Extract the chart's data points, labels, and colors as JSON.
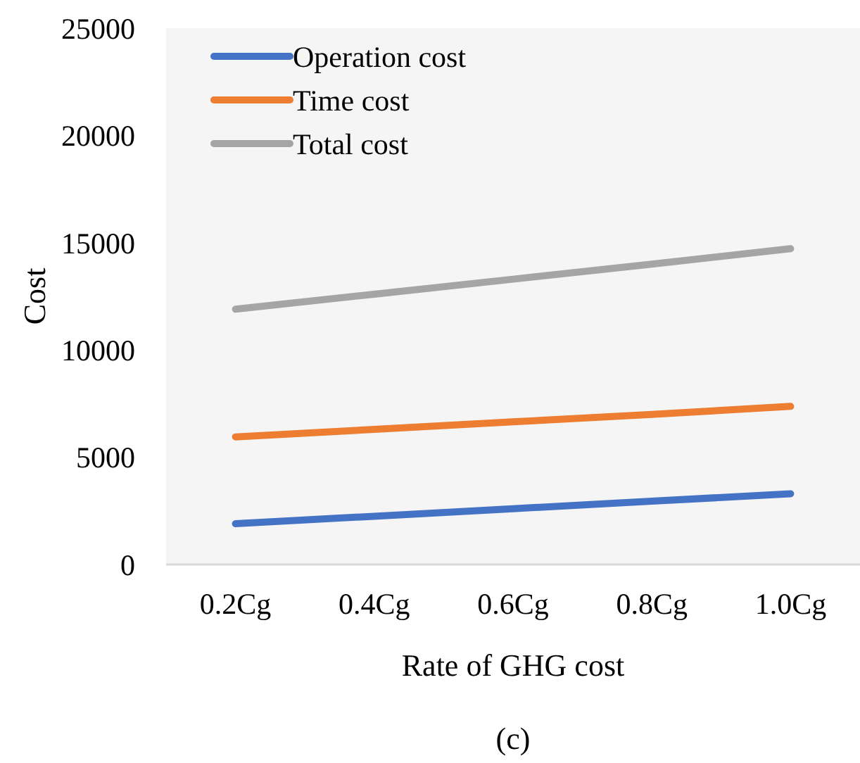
{
  "chart_data": {
    "type": "line",
    "xlabel": "Rate of GHG cost",
    "ylabel": "Cost",
    "categories": [
      "0.2Cg",
      "0.4Cg",
      "0.6Cg",
      "0.8Cg",
      "1.0Cg"
    ],
    "series": [
      {
        "name": "Operation cost",
        "color": "#4472c4",
        "values": [
          1900,
          2250,
          2600,
          2950,
          3300
        ]
      },
      {
        "name": "Time cost",
        "color": "#ed7d31",
        "values": [
          5950,
          6300,
          6650,
          7000,
          7370
        ]
      },
      {
        "name": "Total cost",
        "color": "#a5a5a5",
        "values": [
          11900,
          12600,
          13300,
          14000,
          14720
        ]
      }
    ],
    "ylim": [
      0,
      25000
    ],
    "yticks": [
      0,
      5000,
      10000,
      15000,
      20000,
      25000
    ],
    "legend": "top left",
    "marker": "none",
    "line_style": "solid",
    "grid": false,
    "annotations": [
      "(c)"
    ]
  }
}
